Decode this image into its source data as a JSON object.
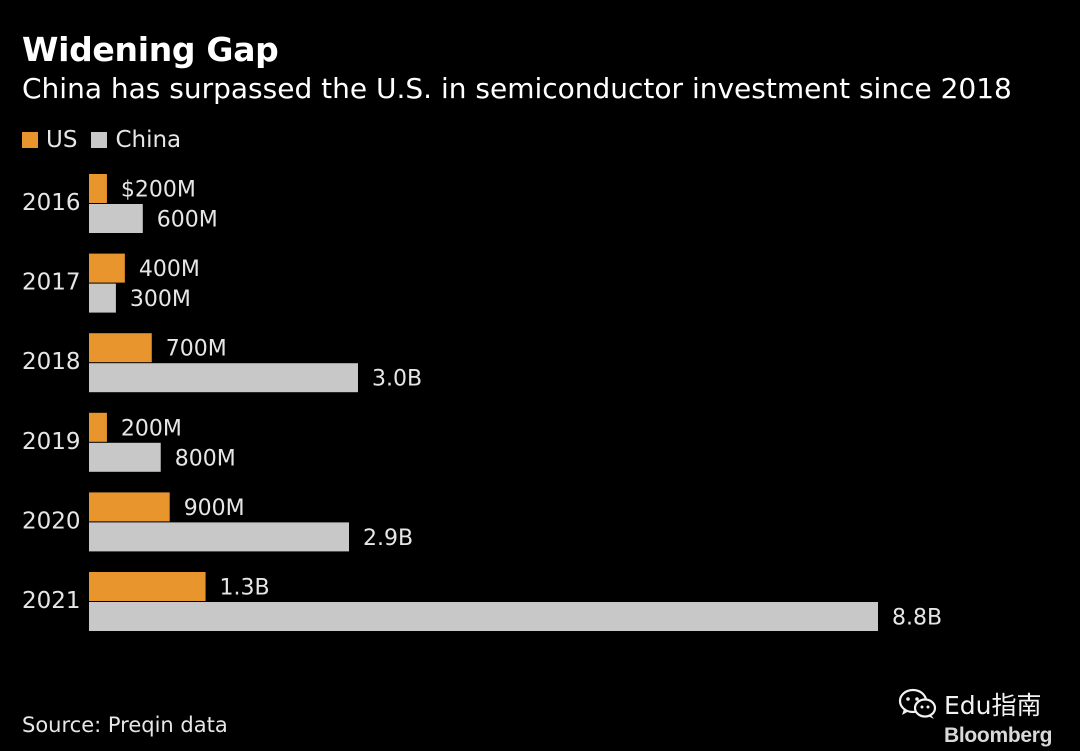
{
  "colors": {
    "background": "#000000",
    "us": "#E8952E",
    "china": "#C8C8C8",
    "text": "#E6E6E6"
  },
  "watermark": {
    "icon": "wechat-icon",
    "text": "Edu指南"
  },
  "brand": "Bloomberg",
  "chart_data": {
    "type": "bar",
    "orientation": "horizontal",
    "title": "Widening Gap",
    "subtitle": "China has surpassed the U.S. in semiconductor investment since 2018",
    "source": "Source: Preqin data",
    "legend": {
      "placement": "top-left",
      "entries": [
        "US",
        "China"
      ]
    },
    "grid": false,
    "unit": "USD millions",
    "xlim": [
      0,
      8800
    ],
    "categories": [
      "2016",
      "2017",
      "2018",
      "2019",
      "2020",
      "2021"
    ],
    "series": [
      {
        "name": "US",
        "color": "#E8952E",
        "values": [
          200,
          400,
          700,
          200,
          900,
          1300
        ],
        "labels": [
          "$200M",
          "400M",
          "700M",
          "200M",
          "900M",
          "1.3B"
        ]
      },
      {
        "name": "China",
        "color": "#C8C8C8",
        "values": [
          600,
          300,
          3000,
          800,
          2900,
          8800
        ],
        "labels": [
          "600M",
          "300M",
          "3.0B",
          "800M",
          "2.9B",
          "8.8B"
        ]
      }
    ]
  }
}
